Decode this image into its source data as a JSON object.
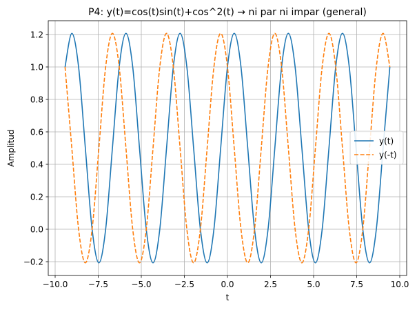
{
  "chart_data": {
    "type": "line",
    "title": "P4: y(t)=cos(t)sin(t)+cos^2(t) → ni par ni impar (general)",
    "xlabel": "t",
    "ylabel": "Amplitud",
    "xlim": [
      -10.4,
      10.4
    ],
    "ylim": [
      -0.285,
      1.285
    ],
    "grid": true,
    "legend_position": "right",
    "x_ticks": [
      -10.0,
      -7.5,
      -5.0,
      -2.5,
      0.0,
      2.5,
      5.0,
      7.5,
      10.0
    ],
    "x_tick_labels": [
      "−10.0",
      "−7.5",
      "−5.0",
      "−2.5",
      "0.0",
      "2.5",
      "5.0",
      "7.5",
      "10.0"
    ],
    "y_ticks": [
      -0.2,
      0.0,
      0.2,
      0.4,
      0.6,
      0.8,
      1.0,
      1.2
    ],
    "y_tick_labels": [
      "−0.2",
      "0.0",
      "0.2",
      "0.4",
      "0.6",
      "0.8",
      "1.0",
      "1.2"
    ],
    "t_range": [
      -9.4248,
      9.4248
    ],
    "series": [
      {
        "name": "y(t)",
        "color": "#1f77b4",
        "style": "solid",
        "x": [
          -9.4248,
          -9.0321,
          -8.6394,
          -8.2467,
          -7.854,
          -7.4613,
          -7.0686,
          -6.6759,
          -6.2832,
          -5.8905,
          -5.4978,
          -5.1051,
          -4.7124,
          -4.3197,
          -3.927,
          -3.5343,
          -3.1416,
          -2.7489,
          -2.3562,
          -1.9635,
          -1.5708,
          -1.1781,
          -0.7854,
          -0.3927,
          0.0,
          0.3927,
          0.7854,
          1.1781,
          1.5708,
          1.9635,
          2.3562,
          2.7489,
          3.1416,
          3.5343,
          3.927,
          4.3197,
          4.7124,
          5.1051,
          5.4978,
          5.8905,
          6.2832,
          6.6759,
          7.0686,
          7.4613,
          7.854,
          8.2467,
          8.6394,
          9.0321,
          9.4248
        ],
        "y": [
          1.0,
          1.2071,
          1.0,
          0.5,
          0.0,
          -0.2071,
          0.0,
          0.5,
          1.0,
          1.2071,
          1.0,
          0.5,
          0.0,
          -0.2071,
          0.0,
          0.5,
          1.0,
          1.2071,
          1.0,
          0.5,
          0.0,
          -0.2071,
          0.0,
          0.5,
          1.0,
          1.2071,
          1.0,
          0.5,
          0.0,
          -0.2071,
          0.0,
          0.5,
          1.0,
          1.2071,
          1.0,
          0.5,
          0.0,
          -0.2071,
          0.0,
          0.5,
          1.0,
          1.2071,
          1.0,
          0.5,
          0.0,
          -0.2071,
          0.0,
          0.5,
          1.0
        ]
      },
      {
        "name": "y(-t)",
        "color": "#ff7f0e",
        "style": "dashed",
        "x": [
          -9.4248,
          -9.0321,
          -8.6394,
          -8.2467,
          -7.854,
          -7.4613,
          -7.0686,
          -6.6759,
          -6.2832,
          -5.8905,
          -5.4978,
          -5.1051,
          -4.7124,
          -4.3197,
          -3.927,
          -3.5343,
          -3.1416,
          -2.7489,
          -2.3562,
          -1.9635,
          -1.5708,
          -1.1781,
          -0.7854,
          -0.3927,
          0.0,
          0.3927,
          0.7854,
          1.1781,
          1.5708,
          1.9635,
          2.3562,
          2.7489,
          3.1416,
          3.5343,
          3.927,
          4.3197,
          4.7124,
          5.1051,
          5.4978,
          5.8905,
          6.2832,
          6.6759,
          7.0686,
          7.4613,
          7.854,
          8.2467,
          8.6394,
          9.0321,
          9.4248
        ],
        "y": [
          1.0,
          0.5,
          0.0,
          -0.2071,
          0.0,
          0.5,
          1.0,
          1.2071,
          1.0,
          0.5,
          0.0,
          -0.2071,
          0.0,
          0.5,
          1.0,
          1.2071,
          1.0,
          0.5,
          0.0,
          -0.2071,
          0.0,
          0.5,
          1.0,
          1.2071,
          1.0,
          0.5,
          0.0,
          -0.2071,
          0.0,
          0.5,
          1.0,
          1.2071,
          1.0,
          0.5,
          0.0,
          -0.2071,
          0.0,
          0.5,
          1.0,
          1.2071,
          1.0,
          0.5,
          0.0,
          -0.2071,
          0.0,
          0.5,
          1.0,
          1.2071,
          1.0
        ]
      }
    ]
  }
}
